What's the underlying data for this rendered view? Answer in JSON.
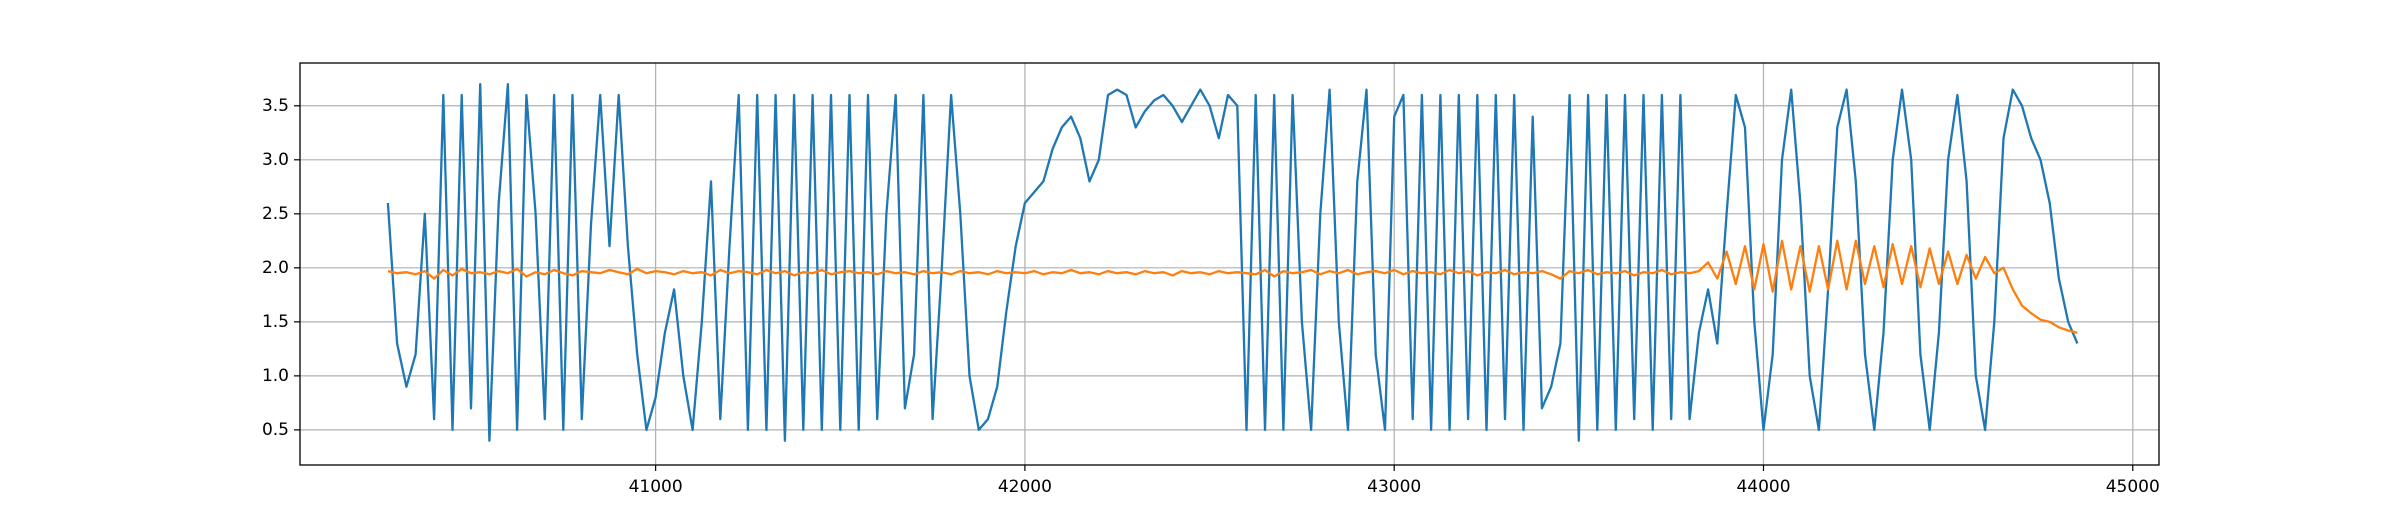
{
  "chart_data": {
    "type": "line",
    "grid": true,
    "xlim": [
      40037,
      45071
    ],
    "ylim": [
      0.175,
      3.896
    ],
    "xticks": [
      41000,
      42000,
      43000,
      44000,
      45000
    ],
    "yticks": [
      0.5,
      {
        "value": 1,
        "label": "1.0"
      },
      1.5,
      {
        "value": 2,
        "label": "2.0"
      },
      2.5,
      {
        "value": 3,
        "label": "3.0"
      },
      3.5
    ],
    "x": [
      40275,
      40300,
      40325,
      40350,
      40375,
      40400,
      40425,
      40450,
      40475,
      40500,
      40525,
      40550,
      40575,
      40600,
      40625,
      40650,
      40675,
      40700,
      40725,
      40750,
      40775,
      40800,
      40825,
      40850,
      40875,
      40900,
      40925,
      40950,
      40975,
      41000,
      41025,
      41050,
      41075,
      41100,
      41125,
      41150,
      41175,
      41200,
      41225,
      41250,
      41275,
      41300,
      41325,
      41350,
      41375,
      41400,
      41425,
      41450,
      41475,
      41500,
      41525,
      41550,
      41575,
      41600,
      41625,
      41650,
      41675,
      41700,
      41725,
      41750,
      41775,
      41800,
      41825,
      41850,
      41875,
      41900,
      41925,
      41950,
      41975,
      42000,
      42025,
      42050,
      42075,
      42100,
      42125,
      42150,
      42175,
      42200,
      42225,
      42250,
      42275,
      42300,
      42325,
      42350,
      42375,
      42400,
      42425,
      42450,
      42475,
      42500,
      42525,
      42550,
      42575,
      42600,
      42625,
      42650,
      42675,
      42700,
      42725,
      42750,
      42775,
      42800,
      42825,
      42850,
      42875,
      42900,
      42925,
      42950,
      42975,
      43000,
      43025,
      43050,
      43075,
      43100,
      43125,
      43150,
      43175,
      43200,
      43225,
      43250,
      43275,
      43300,
      43325,
      43350,
      43375,
      43400,
      43425,
      43450,
      43475,
      43500,
      43525,
      43550,
      43575,
      43600,
      43625,
      43650,
      43675,
      43700,
      43725,
      43750,
      43775,
      43800,
      43825,
      43850,
      43875,
      43900,
      43925,
      43950,
      43975,
      44000,
      44025,
      44050,
      44075,
      44100,
      44125,
      44150,
      44175,
      44200,
      44225,
      44250,
      44275,
      44300,
      44325,
      44350,
      44375,
      44400,
      44425,
      44450,
      44475,
      44500,
      44525,
      44550,
      44575,
      44600,
      44625,
      44650,
      44675,
      44700,
      44725,
      44750,
      44775,
      44800,
      44825,
      44850
    ],
    "series": [
      {
        "color": "#1f77b4",
        "values": [
          2.6,
          1.3,
          0.9,
          1.2,
          2.5,
          0.6,
          3.6,
          0.5,
          3.6,
          0.7,
          3.7,
          0.4,
          2.6,
          3.7,
          0.5,
          3.6,
          2.5,
          0.6,
          3.6,
          0.5,
          3.6,
          0.6,
          2.4,
          3.6,
          2.2,
          3.6,
          2.2,
          1.2,
          0.5,
          0.8,
          1.4,
          1.8,
          1.0,
          0.5,
          1.5,
          2.8,
          0.6,
          2.2,
          3.6,
          0.5,
          3.6,
          0.5,
          3.6,
          0.4,
          3.6,
          0.5,
          3.6,
          0.5,
          3.6,
          0.5,
          3.6,
          0.5,
          3.6,
          0.6,
          2.5,
          3.6,
          0.7,
          1.2,
          3.6,
          0.6,
          2.0,
          3.6,
          2.5,
          1.0,
          0.5,
          0.6,
          0.9,
          1.6,
          2.2,
          2.6,
          2.7,
          2.8,
          3.1,
          3.3,
          3.4,
          3.2,
          2.8,
          3.0,
          3.6,
          3.65,
          3.6,
          3.3,
          3.45,
          3.55,
          3.6,
          3.5,
          3.35,
          3.5,
          3.65,
          3.5,
          3.2,
          3.6,
          3.5,
          0.5,
          3.6,
          0.5,
          3.6,
          0.5,
          3.6,
          1.5,
          0.5,
          2.5,
          3.65,
          1.5,
          0.5,
          2.8,
          3.65,
          1.2,
          0.5,
          3.4,
          3.6,
          0.6,
          3.6,
          0.5,
          3.6,
          0.5,
          3.6,
          0.6,
          3.6,
          0.5,
          3.6,
          0.6,
          3.6,
          0.5,
          3.4,
          0.7,
          0.9,
          1.3,
          3.6,
          0.4,
          3.6,
          0.5,
          3.6,
          0.5,
          3.6,
          0.6,
          3.6,
          0.5,
          3.6,
          0.6,
          3.6,
          0.6,
          1.4,
          1.8,
          1.3,
          2.5,
          3.6,
          3.3,
          1.5,
          0.5,
          1.2,
          3.0,
          3.65,
          2.6,
          1.0,
          0.5,
          1.8,
          3.3,
          3.65,
          2.8,
          1.2,
          0.5,
          1.4,
          3.0,
          3.65,
          3.0,
          1.2,
          0.5,
          1.4,
          3.0,
          3.6,
          2.8,
          1.0,
          0.5,
          1.5,
          3.2,
          3.65,
          3.5,
          3.2,
          3.0,
          2.6,
          1.9,
          1.5,
          1.3
        ]
      },
      {
        "color": "#ff7f0e",
        "values": [
          1.97,
          1.95,
          1.96,
          1.94,
          1.97,
          1.9,
          1.98,
          1.93,
          1.99,
          1.95,
          1.96,
          1.94,
          1.97,
          1.95,
          1.99,
          1.92,
          1.96,
          1.94,
          1.98,
          1.95,
          1.93,
          1.97,
          1.96,
          1.95,
          1.98,
          1.96,
          1.94,
          1.99,
          1.95,
          1.97,
          1.96,
          1.94,
          1.97,
          1.95,
          1.96,
          1.93,
          1.98,
          1.95,
          1.97,
          1.96,
          1.94,
          1.98,
          1.95,
          1.97,
          1.93,
          1.96,
          1.95,
          1.98,
          1.94,
          1.96,
          1.97,
          1.95,
          1.96,
          1.94,
          1.97,
          1.95,
          1.96,
          1.94,
          1.97,
          1.95,
          1.96,
          1.94,
          1.97,
          1.95,
          1.96,
          1.94,
          1.97,
          1.95,
          1.96,
          1.95,
          1.97,
          1.94,
          1.96,
          1.95,
          1.98,
          1.95,
          1.96,
          1.94,
          1.97,
          1.95,
          1.96,
          1.94,
          1.97,
          1.95,
          1.96,
          1.93,
          1.97,
          1.95,
          1.96,
          1.94,
          1.97,
          1.95,
          1.96,
          1.95,
          1.94,
          1.98,
          1.92,
          1.97,
          1.95,
          1.96,
          1.98,
          1.94,
          1.97,
          1.95,
          1.98,
          1.94,
          1.96,
          1.97,
          1.95,
          1.98,
          1.94,
          1.97,
          1.95,
          1.96,
          1.94,
          1.98,
          1.95,
          1.97,
          1.93,
          1.96,
          1.95,
          1.98,
          1.94,
          1.96,
          1.95,
          1.97,
          1.94,
          1.9,
          1.97,
          1.95,
          1.98,
          1.94,
          1.96,
          1.95,
          1.97,
          1.93,
          1.96,
          1.95,
          1.98,
          1.94,
          1.96,
          1.95,
          1.97,
          2.05,
          1.9,
          2.15,
          1.85,
          2.2,
          1.8,
          2.22,
          1.78,
          2.25,
          1.8,
          2.2,
          1.78,
          2.2,
          1.8,
          2.25,
          1.8,
          2.25,
          1.85,
          2.2,
          1.82,
          2.22,
          1.85,
          2.2,
          1.82,
          2.18,
          1.85,
          2.15,
          1.85,
          2.12,
          1.9,
          2.1,
          1.95,
          2.0,
          1.8,
          1.65,
          1.58,
          1.52,
          1.5,
          1.45,
          1.42,
          1.4
        ]
      }
    ]
  }
}
